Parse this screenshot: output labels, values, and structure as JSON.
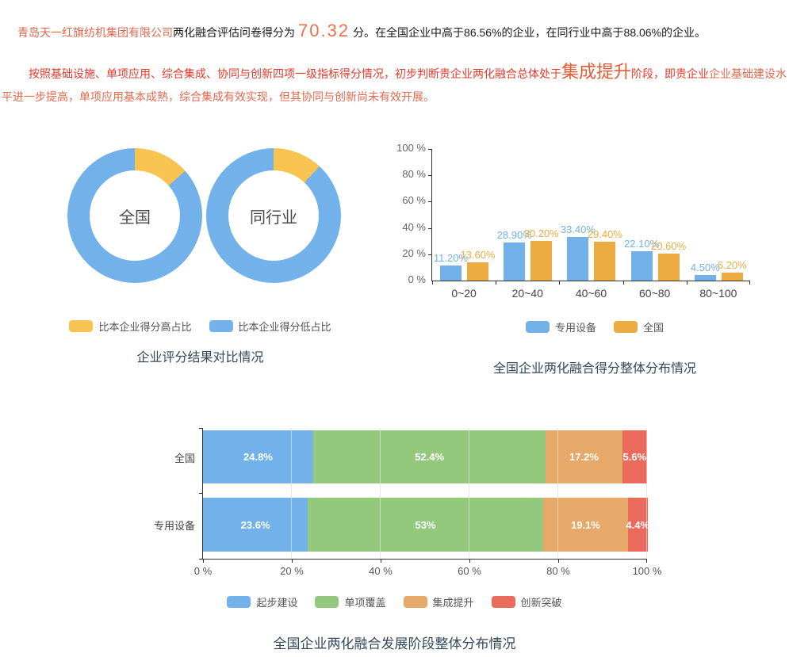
{
  "page": {
    "para1": {
      "company": "青岛天一红旗纺机集团有限公司",
      "mid": "两化融合评估问卷得分为",
      "score": "70.32",
      "tail": "分。在全国企业中高于86.56%的企业，在同行业中高于88.06%的企业。"
    },
    "para2": {
      "seg1": "按照基础设施、单项应用、综合集成、协同与创新四项一级指标得分情况，初步判断贵企业两化融合总体处于",
      "stage": "集成提升",
      "seg2": "阶段，即贵企业",
      "seg3": "企业基础建设水平进一步提高，单项应用基本成熟，综合集成有效实现，但其协同与创新尚未有效开展。"
    }
  },
  "colors": {
    "blue": "#73B1EA",
    "yellow": "#F8C451",
    "orange_bar": "#ECAC41",
    "green": "#94C87D",
    "orange_stack": "#E7A96A",
    "red": "#EA6B5B",
    "title": "#33485C"
  },
  "chart_data": [
    {
      "id": "donut-compare",
      "type": "pie",
      "title": "企业评分结果对比情况",
      "legend": [
        {
          "label": "比本企业得分高占比",
          "color": "#F8C451"
        },
        {
          "label": "比本企业得分低占比",
          "color": "#73B1EA"
        }
      ],
      "donuts": [
        {
          "label": "全国",
          "higher_pct": 13.44,
          "lower_pct": 86.56
        },
        {
          "label": "同行业",
          "higher_pct": 11.94,
          "lower_pct": 88.06
        }
      ]
    },
    {
      "id": "score-distribution",
      "type": "bar",
      "title": "全国企业两化融合得分整体分布情况",
      "categories": [
        "0~20",
        "20~40",
        "40~60",
        "60~80",
        "80~100"
      ],
      "series": [
        {
          "name": "专用设备",
          "color": "#73B1EA",
          "values": [
            11.2,
            28.9,
            33.4,
            22.1,
            4.5
          ],
          "labels": [
            "11.20%",
            "28.90%",
            "33.40%",
            "22.10%",
            "4.50%"
          ]
        },
        {
          "name": "全国",
          "color": "#ECAC41",
          "values": [
            13.6,
            30.2,
            29.4,
            20.6,
            6.2
          ],
          "labels": [
            "13.60%",
            "30.20%",
            "29.40%",
            "20.60%",
            "6.20%"
          ]
        }
      ],
      "yticks": [
        "0 %",
        "20 %",
        "40 %",
        "60 %",
        "80 %",
        "100 %"
      ],
      "ylim": [
        0,
        100
      ],
      "grid": false,
      "legend_position": "bottom"
    },
    {
      "id": "stage-distribution",
      "type": "bar-stacked",
      "title": "全国企业两化融合发展阶段整体分布情况",
      "categories": [
        "全国",
        "专用设备"
      ],
      "series": [
        {
          "name": "起步建设",
          "color": "#73B1EA",
          "values": [
            24.8,
            23.6
          ],
          "labels": [
            "24.8%",
            "23.6%"
          ]
        },
        {
          "name": "单项覆盖",
          "color": "#94C87D",
          "values": [
            52.4,
            53.0
          ],
          "labels": [
            "52.4%",
            "53%"
          ]
        },
        {
          "name": "集成提升",
          "color": "#E7A96A",
          "values": [
            17.2,
            19.1
          ],
          "labels": [
            "17.2%",
            "19.1%"
          ]
        },
        {
          "name": "创新突破",
          "color": "#EA6B5B",
          "values": [
            5.6,
            4.4
          ],
          "labels": [
            "5.6%",
            "4.4%"
          ]
        }
      ],
      "xticks": [
        "0 %",
        "20 %",
        "40 %",
        "60 %",
        "80 %",
        "100 %"
      ],
      "xlim": [
        0,
        100
      ],
      "grid": true,
      "legend_position": "bottom"
    }
  ]
}
